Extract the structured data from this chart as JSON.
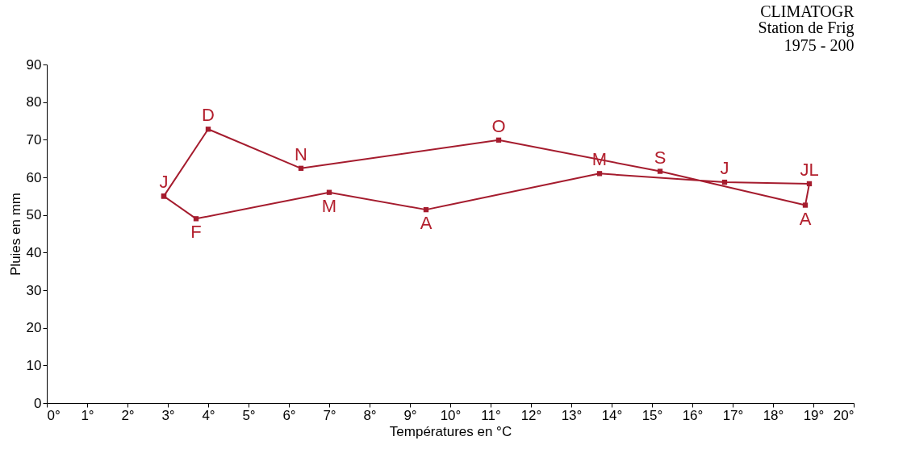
{
  "chart_data": {
    "type": "scatter",
    "title": "CLIMATOGR",
    "subtitle": "Station de Frig\n1975 - 200",
    "xlabel": "Températures en °C",
    "ylabel": "Pluies en mm",
    "xlim": [
      0,
      20
    ],
    "ylim": [
      0,
      90
    ],
    "xticks": [
      {
        "value": 0,
        "label": "0°"
      },
      {
        "value": 1,
        "label": "1°"
      },
      {
        "value": 2,
        "label": "2°"
      },
      {
        "value": 3,
        "label": "3°"
      },
      {
        "value": 4,
        "label": "4°"
      },
      {
        "value": 5,
        "label": "5°"
      },
      {
        "value": 6,
        "label": "6°"
      },
      {
        "value": 7,
        "label": "7°"
      },
      {
        "value": 8,
        "label": "8°"
      },
      {
        "value": 9,
        "label": "9°"
      },
      {
        "value": 10,
        "label": "10°"
      },
      {
        "value": 11,
        "label": "11°"
      },
      {
        "value": 12,
        "label": "12°"
      },
      {
        "value": 13,
        "label": "13°"
      },
      {
        "value": 14,
        "label": "14°"
      },
      {
        "value": 15,
        "label": "15°"
      },
      {
        "value": 16,
        "label": "16°"
      },
      {
        "value": 17,
        "label": "17°"
      },
      {
        "value": 18,
        "label": "18°"
      },
      {
        "value": 19,
        "label": "19°"
      },
      {
        "value": 20,
        "label": "20°"
      }
    ],
    "yticks": [
      0,
      10,
      20,
      30,
      40,
      50,
      60,
      70,
      80,
      90
    ],
    "grid": false,
    "marker": "square",
    "line_style": "solid",
    "series": [
      {
        "color": "#a51c2e",
        "x": [
          2.9,
          3.7,
          7.0,
          9.4,
          13.7,
          16.8,
          18.9,
          18.8,
          15.2,
          11.2,
          6.3,
          4.0,
          2.9
        ],
        "values": [
          55,
          49,
          56,
          51.4,
          61,
          58.7,
          58.3,
          52.6,
          61.6,
          69.9,
          62.4,
          72.8,
          55
        ],
        "value_labels": [
          "J",
          "F",
          "M",
          "A",
          "M",
          "J",
          "JL",
          "A",
          "S",
          "O",
          "N",
          "D",
          null
        ]
      }
    ]
  }
}
